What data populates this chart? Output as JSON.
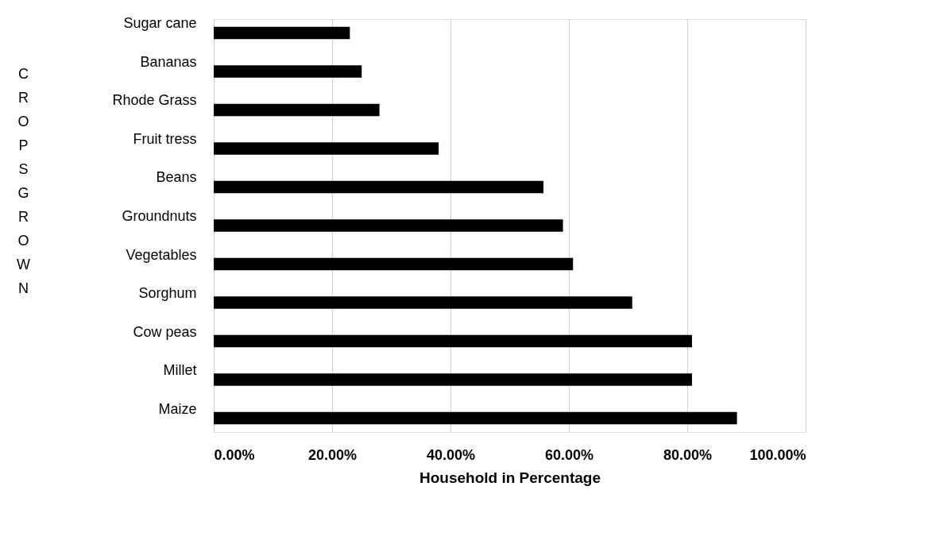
{
  "chart_data": {
    "type": "bar",
    "orientation": "horizontal",
    "xlabel": "Household in Percentage",
    "ylabel": "CROPS GROWN",
    "categories": [
      "Sugar cane",
      "Bananas",
      "Rhode Grass",
      "Fruit tress",
      "Beans",
      "Groundnuts",
      "Vegetables",
      "Sorghum",
      "Cow peas",
      "Millet",
      "Maize"
    ],
    "values": [
      23,
      25,
      28,
      38,
      55.7,
      59,
      60.7,
      70.7,
      80.8,
      80.8,
      88.4
    ],
    "color": "#000000",
    "xlim": [
      0,
      100
    ],
    "xticks": [
      {
        "value": 0,
        "label": "0.00%"
      },
      {
        "value": 20,
        "label": "20.00%"
      },
      {
        "value": 40,
        "label": "40.00%"
      },
      {
        "value": 60,
        "label": "60.00%"
      },
      {
        "value": 80,
        "label": "80.00%"
      },
      {
        "value": 100,
        "label": "100.00%"
      }
    ],
    "grid": "x"
  }
}
